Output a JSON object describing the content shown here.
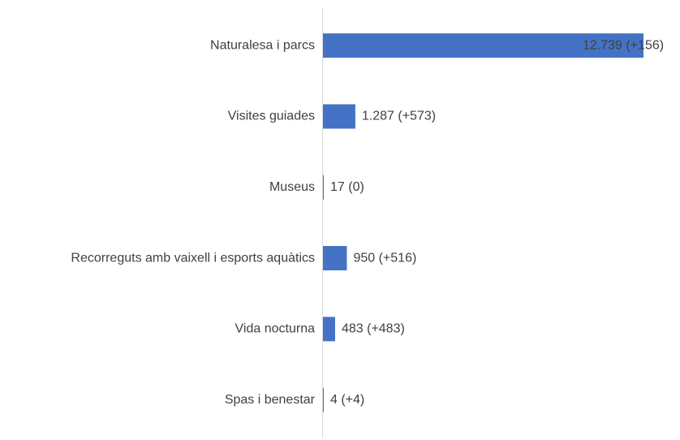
{
  "chart_data": {
    "type": "hbar",
    "categories": [
      "Naturalesa i parcs",
      "Visites guiades",
      "Museus",
      "Recorreguts amb vaixell i esports aquàtics",
      "Vida nocturna",
      "Spas i benestar"
    ],
    "values": [
      12739,
      1287,
      17,
      950,
      483,
      4
    ],
    "value_labels": [
      "12.739 (+156)",
      "1.287 (+573)",
      "17 (0)",
      "950 (+516)",
      "483 (+483)",
      "4 (+4)"
    ],
    "color": "#4472c4"
  }
}
